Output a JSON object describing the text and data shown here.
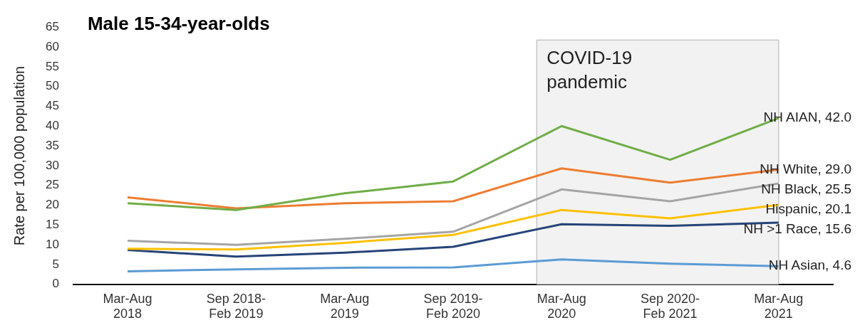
{
  "chart_data": {
    "type": "line",
    "title": "Male 15-34-year-olds",
    "ylabel": "Rate per 100,000 population",
    "categories": [
      "Mar-Aug\n2018",
      "Sep 2018-\nFeb 2019",
      "Mar-Aug\n2019",
      "Sep 2019-\nFeb 2020",
      "Mar-Aug\n2020",
      "Sep 2020-\nFeb 2021",
      "Mar-Aug\n2021"
    ],
    "series": [
      {
        "color": "#70ad47",
        "values": [
          20.5,
          18.8,
          23,
          26,
          40,
          31.5,
          42
        ],
        "value_labels": [
          null,
          null,
          null,
          null,
          null,
          null,
          "NH AIAN, 42.0"
        ]
      },
      {
        "color": "#ed7d31",
        "values": [
          22,
          19.2,
          20.5,
          21,
          29.3,
          25.7,
          29
        ],
        "value_labels": [
          null,
          null,
          null,
          null,
          null,
          null,
          "NH White, 29.0"
        ]
      },
      {
        "color": "#a5a5a5",
        "values": [
          11,
          10,
          11.5,
          13.3,
          24,
          21,
          25.5
        ],
        "value_labels": [
          null,
          null,
          null,
          null,
          null,
          null,
          "NH Black, 25.5"
        ]
      },
      {
        "color": "#ffc000",
        "values": [
          9,
          8.8,
          10.5,
          12.5,
          18.8,
          16.7,
          20.1
        ],
        "value_labels": [
          null,
          null,
          null,
          null,
          null,
          null,
          "Hispanic, 20.1"
        ]
      },
      {
        "color": "#264478",
        "values": [
          8.7,
          7,
          8,
          9.5,
          15.2,
          14.8,
          15.6
        ],
        "value_labels": [
          null,
          null,
          null,
          null,
          null,
          null,
          "NH >1 Race, 15.6"
        ]
      },
      {
        "color": "#5b9bd5",
        "values": [
          3.3,
          3.8,
          4.2,
          4.3,
          6.3,
          5.2,
          4.6
        ],
        "value_labels": [
          null,
          null,
          null,
          null,
          null,
          null,
          "NH Asian, 4.6"
        ]
      }
    ],
    "ylim": [
      0,
      65
    ],
    "yticks": [
      0,
      5,
      10,
      15,
      20,
      25,
      30,
      35,
      40,
      45,
      50,
      55,
      60,
      65
    ],
    "bands": [
      {
        "axis": "x",
        "from": "Mar-Aug\n2020",
        "to": "Mar-Aug\n2021",
        "label": "COVID-19\npandemic",
        "color": "#f2f2f2"
      }
    ],
    "grid": false,
    "legend": false,
    "marker": "none",
    "line_style": "solid"
  }
}
